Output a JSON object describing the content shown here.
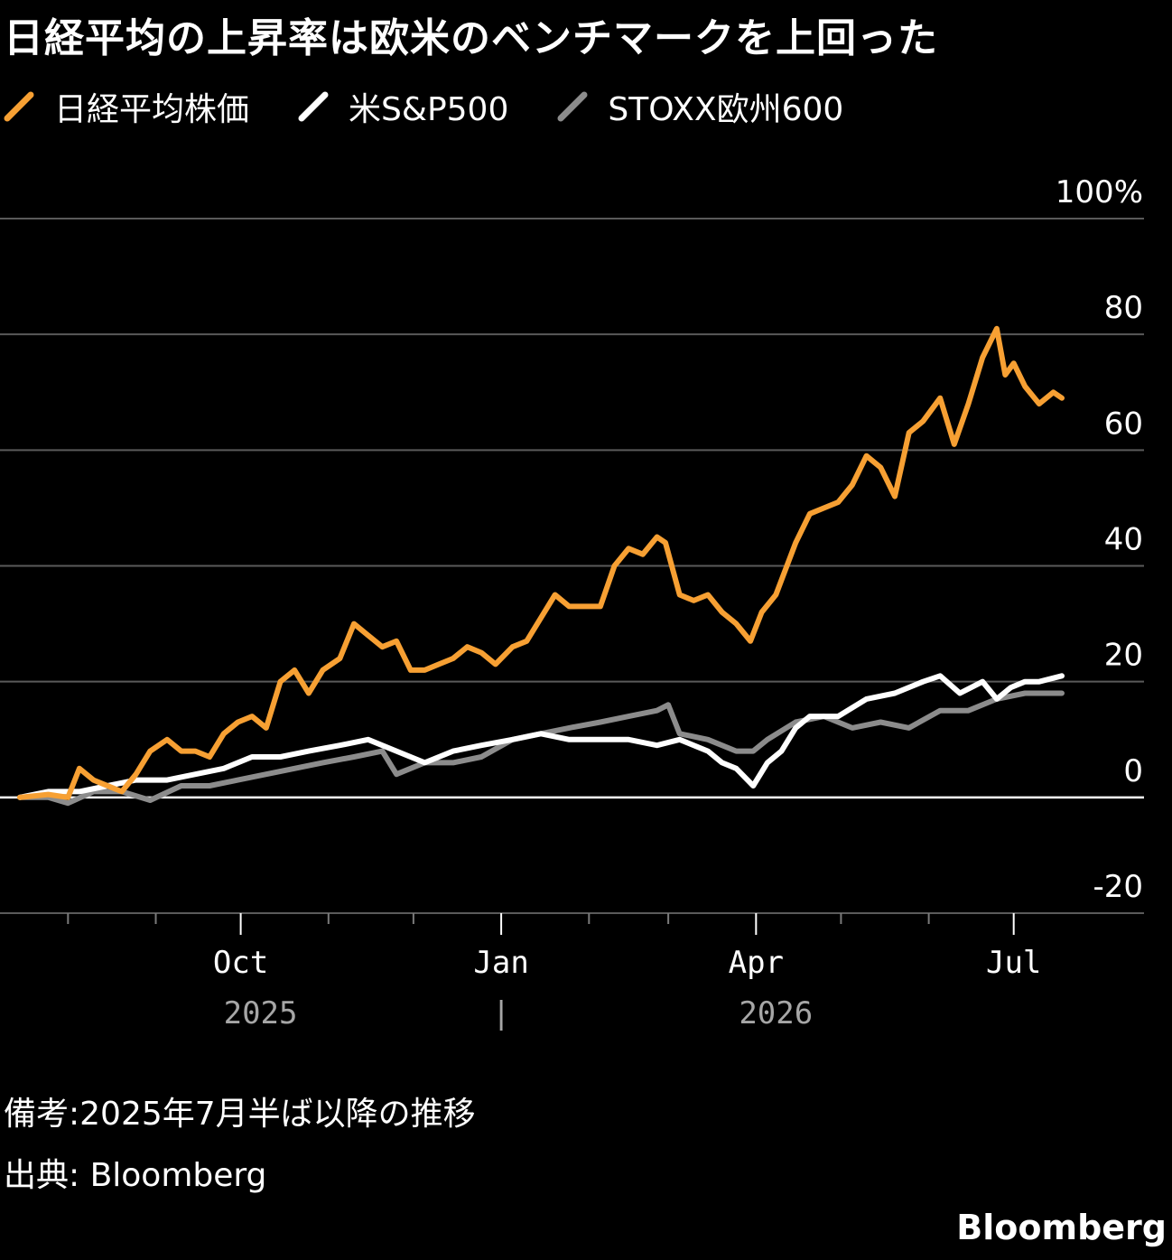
{
  "title": "日経平均の上昇率は欧米のベンチマークを上回った",
  "legend": [
    {
      "label": "日経平均株価",
      "color": "#F7A033"
    },
    {
      "label": "米S&P500",
      "color": "#FFFFFF"
    },
    {
      "label": "STOXX欧州600",
      "color": "#8C8C8C"
    }
  ],
  "note": "備考:2025年7月半ば以降の推移",
  "source": "出典: Bloomberg",
  "brand": "Bloomberg",
  "chart_data": {
    "type": "line",
    "y_unit": "%",
    "ylim": [
      -20,
      100
    ],
    "y_ticks": [
      -20,
      0,
      20,
      40,
      60,
      80,
      100
    ],
    "y_tick_labels": [
      "-20",
      "0",
      "20",
      "40",
      "60",
      "80",
      "100%"
    ],
    "x_range": [
      "2025-07-15",
      "2026-07-20"
    ],
    "x_ticks": [
      {
        "date": "2025-10-01",
        "label": "Oct"
      },
      {
        "date": "2026-01-01",
        "label": "Jan"
      },
      {
        "date": "2026-04-01",
        "label": "Apr"
      },
      {
        "date": "2026-07-01",
        "label": "Jul"
      }
    ],
    "minor_ticks": [
      "2025-08-01",
      "2025-09-01",
      "2025-11-01",
      "2025-12-01",
      "2026-02-01",
      "2026-03-01",
      "2026-05-01",
      "2026-06-01"
    ],
    "year_labels": [
      {
        "label": "2025",
        "date": "2025-10-08"
      },
      {
        "label": "|",
        "date": "2026-01-01"
      },
      {
        "label": "2026",
        "date": "2026-04-08"
      }
    ],
    "grid": true,
    "legend_position": "top-left",
    "series": [
      {
        "name": "日経平均株価",
        "color": "#F7A033",
        "points": [
          [
            "2025-07-15",
            0
          ],
          [
            "2025-07-25",
            0.5
          ],
          [
            "2025-08-01",
            0
          ],
          [
            "2025-08-05",
            5
          ],
          [
            "2025-08-10",
            3
          ],
          [
            "2025-08-15",
            2
          ],
          [
            "2025-08-20",
            1
          ],
          [
            "2025-08-25",
            4
          ],
          [
            "2025-08-30",
            8
          ],
          [
            "2025-09-05",
            10
          ],
          [
            "2025-09-10",
            8
          ],
          [
            "2025-09-15",
            8
          ],
          [
            "2025-09-20",
            7
          ],
          [
            "2025-09-25",
            11
          ],
          [
            "2025-09-30",
            13
          ],
          [
            "2025-10-05",
            14
          ],
          [
            "2025-10-10",
            12
          ],
          [
            "2025-10-15",
            20
          ],
          [
            "2025-10-20",
            22
          ],
          [
            "2025-10-25",
            18
          ],
          [
            "2025-10-30",
            22
          ],
          [
            "2025-11-05",
            24
          ],
          [
            "2025-11-10",
            30
          ],
          [
            "2025-11-15",
            28
          ],
          [
            "2025-11-20",
            26
          ],
          [
            "2025-11-25",
            27
          ],
          [
            "2025-11-30",
            22
          ],
          [
            "2025-12-05",
            22
          ],
          [
            "2025-12-10",
            23
          ],
          [
            "2025-12-15",
            24
          ],
          [
            "2025-12-20",
            26
          ],
          [
            "2025-12-25",
            25
          ],
          [
            "2025-12-30",
            23
          ],
          [
            "2026-01-05",
            26
          ],
          [
            "2026-01-10",
            27
          ],
          [
            "2026-01-15",
            31
          ],
          [
            "2026-01-20",
            35
          ],
          [
            "2026-01-25",
            33
          ],
          [
            "2026-01-30",
            33
          ],
          [
            "2026-02-05",
            33
          ],
          [
            "2026-02-10",
            40
          ],
          [
            "2026-02-15",
            43
          ],
          [
            "2026-02-20",
            42
          ],
          [
            "2026-02-25",
            45
          ],
          [
            "2026-02-28",
            44
          ],
          [
            "2026-03-05",
            35
          ],
          [
            "2026-03-10",
            34
          ],
          [
            "2026-03-15",
            35
          ],
          [
            "2026-03-20",
            32
          ],
          [
            "2026-03-25",
            30
          ],
          [
            "2026-03-30",
            27
          ],
          [
            "2026-04-03",
            32
          ],
          [
            "2026-04-08",
            35
          ],
          [
            "2026-04-15",
            44
          ],
          [
            "2026-04-20",
            49
          ],
          [
            "2026-04-25",
            50
          ],
          [
            "2026-04-30",
            51
          ],
          [
            "2026-05-05",
            54
          ],
          [
            "2026-05-10",
            59
          ],
          [
            "2026-05-15",
            57
          ],
          [
            "2026-05-20",
            52
          ],
          [
            "2026-05-25",
            63
          ],
          [
            "2026-05-30",
            65
          ],
          [
            "2026-06-05",
            69
          ],
          [
            "2026-06-10",
            61
          ],
          [
            "2026-06-15",
            68
          ],
          [
            "2026-06-20",
            76
          ],
          [
            "2026-06-25",
            81
          ],
          [
            "2026-06-28",
            73
          ],
          [
            "2026-07-01",
            75
          ],
          [
            "2026-07-05",
            71
          ],
          [
            "2026-07-10",
            68
          ],
          [
            "2026-07-15",
            70
          ],
          [
            "2026-07-18",
            69
          ]
        ]
      },
      {
        "name": "米S&P500",
        "color": "#FFFFFF",
        "points": [
          [
            "2025-07-15",
            0
          ],
          [
            "2025-07-25",
            1
          ],
          [
            "2025-08-05",
            1
          ],
          [
            "2025-08-15",
            2
          ],
          [
            "2025-08-25",
            3
          ],
          [
            "2025-09-05",
            3
          ],
          [
            "2025-09-15",
            4
          ],
          [
            "2025-09-25",
            5
          ],
          [
            "2025-10-05",
            7
          ],
          [
            "2025-10-15",
            7
          ],
          [
            "2025-10-25",
            8
          ],
          [
            "2025-11-05",
            9
          ],
          [
            "2025-11-15",
            10
          ],
          [
            "2025-11-25",
            8
          ],
          [
            "2025-12-05",
            6
          ],
          [
            "2025-12-15",
            8
          ],
          [
            "2025-12-25",
            9
          ],
          [
            "2026-01-05",
            10
          ],
          [
            "2026-01-15",
            11
          ],
          [
            "2026-01-25",
            10
          ],
          [
            "2026-02-05",
            10
          ],
          [
            "2026-02-15",
            10
          ],
          [
            "2026-02-25",
            9
          ],
          [
            "2026-03-05",
            10
          ],
          [
            "2026-03-15",
            8
          ],
          [
            "2026-03-20",
            6
          ],
          [
            "2026-03-25",
            5
          ],
          [
            "2026-03-31",
            2
          ],
          [
            "2026-04-05",
            6
          ],
          [
            "2026-04-10",
            8
          ],
          [
            "2026-04-15",
            12
          ],
          [
            "2026-04-20",
            14
          ],
          [
            "2026-04-30",
            14
          ],
          [
            "2026-05-10",
            17
          ],
          [
            "2026-05-20",
            18
          ],
          [
            "2026-05-30",
            20
          ],
          [
            "2026-06-05",
            21
          ],
          [
            "2026-06-12",
            18
          ],
          [
            "2026-06-20",
            20
          ],
          [
            "2026-06-25",
            17
          ],
          [
            "2026-06-30",
            19
          ],
          [
            "2026-07-05",
            20
          ],
          [
            "2026-07-10",
            20
          ],
          [
            "2026-07-18",
            21
          ]
        ]
      },
      {
        "name": "STOXX欧州600",
        "color": "#8C8C8C",
        "points": [
          [
            "2025-07-15",
            0
          ],
          [
            "2025-07-25",
            0
          ],
          [
            "2025-08-01",
            -1
          ],
          [
            "2025-08-10",
            1
          ],
          [
            "2025-08-20",
            1
          ],
          [
            "2025-08-30",
            -0.5
          ],
          [
            "2025-09-10",
            2
          ],
          [
            "2025-09-20",
            2
          ],
          [
            "2025-09-30",
            3
          ],
          [
            "2025-10-10",
            4
          ],
          [
            "2025-10-20",
            5
          ],
          [
            "2025-10-30",
            6
          ],
          [
            "2025-11-10",
            7
          ],
          [
            "2025-11-20",
            8
          ],
          [
            "2025-11-25",
            4
          ],
          [
            "2025-12-05",
            6
          ],
          [
            "2025-12-15",
            6
          ],
          [
            "2025-12-25",
            7
          ],
          [
            "2026-01-05",
            10
          ],
          [
            "2026-01-15",
            11
          ],
          [
            "2026-01-25",
            12
          ],
          [
            "2026-02-05",
            13
          ],
          [
            "2026-02-15",
            14
          ],
          [
            "2026-02-25",
            15
          ],
          [
            "2026-03-01",
            16
          ],
          [
            "2026-03-05",
            11
          ],
          [
            "2026-03-15",
            10
          ],
          [
            "2026-03-25",
            8
          ],
          [
            "2026-03-31",
            8
          ],
          [
            "2026-04-05",
            10
          ],
          [
            "2026-04-15",
            13
          ],
          [
            "2026-04-25",
            14
          ],
          [
            "2026-05-05",
            12
          ],
          [
            "2026-05-15",
            13
          ],
          [
            "2026-05-25",
            12
          ],
          [
            "2026-06-05",
            15
          ],
          [
            "2026-06-15",
            15
          ],
          [
            "2026-06-25",
            17
          ],
          [
            "2026-07-05",
            18
          ],
          [
            "2026-07-12",
            18
          ],
          [
            "2026-07-18",
            18
          ]
        ]
      }
    ]
  }
}
